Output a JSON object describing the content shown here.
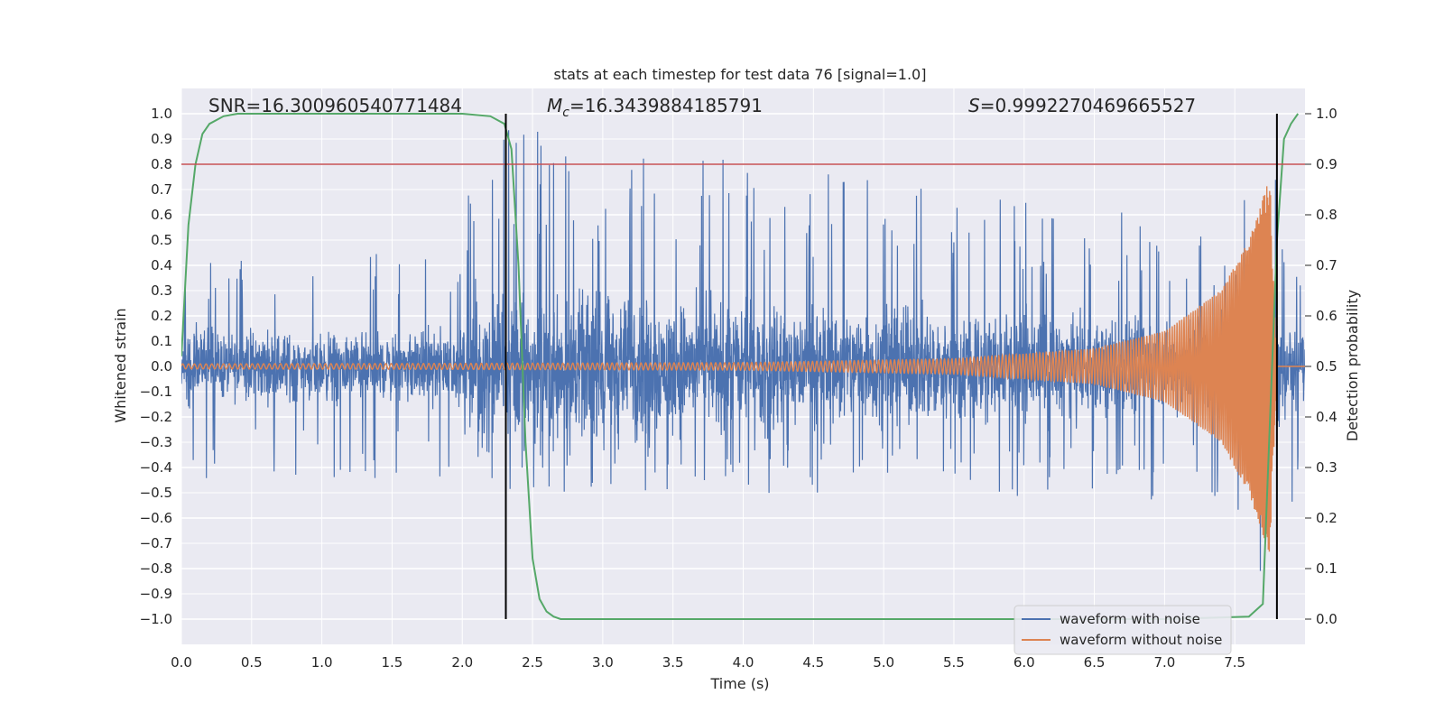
{
  "chart_data": {
    "type": "line",
    "title": "stats at each timestep for test data 76 [signal=1.0]",
    "xlabel": "Time (s)",
    "ylabel_left": "Whitened strain",
    "ylabel_right": "Detection probability",
    "xlim": [
      0.0,
      8.0
    ],
    "ylim_left": [
      -1.1,
      1.1
    ],
    "ylim_right": [
      -0.05,
      1.05
    ],
    "x_ticks": [
      "0.0",
      "0.5",
      "1.0",
      "1.5",
      "2.0",
      "2.5",
      "3.0",
      "3.5",
      "4.0",
      "4.5",
      "5.0",
      "5.5",
      "6.0",
      "6.5",
      "7.0",
      "7.5"
    ],
    "x_tick_values": [
      0.0,
      0.5,
      1.0,
      1.5,
      2.0,
      2.5,
      3.0,
      3.5,
      4.0,
      4.5,
      5.0,
      5.5,
      6.0,
      6.5,
      7.0,
      7.5
    ],
    "y_left_ticks": [
      "−1.0",
      "−0.9",
      "−0.8",
      "−0.7",
      "−0.6",
      "−0.5",
      "−0.4",
      "−0.3",
      "−0.2",
      "−0.1",
      "0.0",
      "0.1",
      "0.2",
      "0.3",
      "0.4",
      "0.5",
      "0.6",
      "0.7",
      "0.8",
      "0.9",
      "1.0"
    ],
    "y_left_tick_values": [
      -1.0,
      -0.9,
      -0.8,
      -0.7,
      -0.6,
      -0.5,
      -0.4,
      -0.3,
      -0.2,
      -0.1,
      0.0,
      0.1,
      0.2,
      0.3,
      0.4,
      0.5,
      0.6,
      0.7,
      0.8,
      0.9,
      1.0
    ],
    "y_right_ticks": [
      "0.0",
      "0.1",
      "0.2",
      "0.3",
      "0.4",
      "0.5",
      "0.6",
      "0.7",
      "0.8",
      "0.9",
      "1.0"
    ],
    "y_right_tick_values": [
      0.0,
      0.1,
      0.2,
      0.3,
      0.4,
      0.5,
      0.6,
      0.7,
      0.8,
      0.9,
      1.0
    ],
    "annotations": {
      "snr": "SNR=16.300960540771484",
      "mc_symbol": "M",
      "mc_sub": "c",
      "mc_value": "=16.3439884185791",
      "s_symbol": "S",
      "s_value": "=0.9992270469665527"
    },
    "threshold": {
      "value": 0.9,
      "axis": "right",
      "color": "#c44e52"
    },
    "vertical_lines": [
      2.31,
      7.8
    ],
    "series": [
      {
        "name": "waveform with noise",
        "color": "#4c72b0",
        "description": "noisy whitened strain, envelope roughly ±0.45 with peaks near 0.97 at t≈2.1s and -0.9 at t≈7.7s",
        "envelope": {
          "x": [
            0.0,
            2.0,
            2.1,
            4.0,
            7.5,
            7.7,
            8.0
          ],
          "upper": [
            0.45,
            0.45,
            0.97,
            0.81,
            0.55,
            0.99,
            0.4
          ],
          "lower": [
            -0.45,
            -0.45,
            -0.5,
            -0.5,
            -0.55,
            -0.93,
            -0.45
          ]
        }
      },
      {
        "name": "waveform without noise",
        "color": "#dd8452",
        "description": "chirp signal, amplitude grows from ~0.01 to ~0.75 near t≈7.75s",
        "amplitude_points": {
          "x": [
            0.0,
            2.0,
            4.0,
            5.5,
            6.5,
            7.0,
            7.4,
            7.6,
            7.75,
            7.8
          ],
          "y": [
            0.01,
            0.012,
            0.015,
            0.03,
            0.07,
            0.14,
            0.3,
            0.5,
            0.75,
            0.0
          ]
        }
      },
      {
        "name": "detection probability",
        "color": "#55a868",
        "axis": "right",
        "x": [
          0.0,
          0.05,
          0.1,
          0.15,
          0.2,
          0.3,
          0.4,
          1.0,
          2.0,
          2.2,
          2.3,
          2.35,
          2.4,
          2.45,
          2.5,
          2.55,
          2.6,
          2.65,
          2.7,
          3.0,
          7.0,
          7.6,
          7.7,
          7.8,
          7.85,
          7.9,
          7.95
        ],
        "y": [
          0.52,
          0.78,
          0.9,
          0.96,
          0.98,
          0.995,
          1.0,
          1.0,
          1.0,
          0.995,
          0.98,
          0.93,
          0.7,
          0.35,
          0.12,
          0.04,
          0.015,
          0.005,
          0.0,
          0.0,
          0.0,
          0.005,
          0.03,
          0.75,
          0.95,
          0.98,
          1.0
        ]
      }
    ],
    "legend": {
      "position": "bottom-right",
      "entries": [
        "waveform with noise",
        "waveform without noise"
      ]
    }
  }
}
